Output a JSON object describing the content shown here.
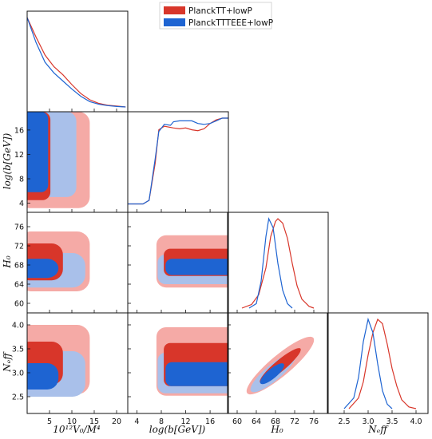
{
  "chart_data": {
    "type": "triangle_corner_plot",
    "parameters": [
      {
        "key": "V",
        "label": "10¹²V₀/M⁴",
        "range": [
          0,
          22.5
        ],
        "ticks": [
          5,
          10,
          15,
          20
        ]
      },
      {
        "key": "b",
        "label": "log(b[GeV])",
        "range": [
          2.5,
          19
        ],
        "ticks": [
          4,
          8,
          12,
          16
        ]
      },
      {
        "key": "H0",
        "label": "H₀",
        "range": [
          58,
          79
        ],
        "ticks": [
          60,
          64,
          68,
          72,
          76
        ],
        "yticks": [
          60,
          64,
          68,
          72,
          76
        ]
      },
      {
        "key": "Neff",
        "label": "Nₑff",
        "range": [
          2.15,
          4.25
        ],
        "ticks": [
          2.5,
          3.0,
          3.5,
          4.0
        ]
      }
    ],
    "axis_labels": {
      "x": [
        "10¹²V₀/M⁴",
        "log(b[GeV])",
        "H₀",
        "Nₑff"
      ],
      "y": [
        "log(b[GeV])",
        "H₀",
        "Nₑff"
      ]
    },
    "tick_labels": {
      "V": [
        "5",
        "10",
        "15",
        "20"
      ],
      "b": [
        "4",
        "8",
        "12",
        "16"
      ],
      "H0": [
        "60",
        "64",
        "68",
        "72",
        "76"
      ],
      "Neff": [
        "2.5",
        "3.0",
        "3.5",
        "4.0"
      ]
    },
    "series": [
      {
        "name": "PlanckTT+lowP",
        "color": "#d8362a",
        "light": "#f5aaa6",
        "marginals": {
          "V": [
            [
              0,
              1.0
            ],
            [
              2,
              0.78
            ],
            [
              4,
              0.58
            ],
            [
              6,
              0.45
            ],
            [
              8,
              0.36
            ],
            [
              10,
              0.25
            ],
            [
              12,
              0.15
            ],
            [
              14,
              0.08
            ],
            [
              16,
              0.04
            ],
            [
              18,
              0.02
            ],
            [
              20,
              0.01
            ],
            [
              22,
              0.0
            ]
          ],
          "b": [
            [
              2.5,
              0.04
            ],
            [
              5,
              0.04
            ],
            [
              6,
              0.08
            ],
            [
              7,
              0.5
            ],
            [
              7.6,
              0.87
            ],
            [
              8.5,
              0.91
            ],
            [
              10,
              0.89
            ],
            [
              11,
              0.88
            ],
            [
              12,
              0.89
            ],
            [
              13,
              0.87
            ],
            [
              14,
              0.86
            ],
            [
              15,
              0.88
            ],
            [
              16,
              0.94
            ],
            [
              17,
              0.98
            ],
            [
              18,
              1.0
            ],
            [
              19,
              1.0
            ]
          ],
          "H0": [
            [
              61,
              0.0
            ],
            [
              63,
              0.04
            ],
            [
              64.5,
              0.15
            ],
            [
              66,
              0.45
            ],
            [
              67,
              0.8
            ],
            [
              68,
              0.97
            ],
            [
              68.5,
              1.0
            ],
            [
              69.5,
              0.95
            ],
            [
              70.5,
              0.78
            ],
            [
              71.5,
              0.5
            ],
            [
              72.5,
              0.25
            ],
            [
              73.5,
              0.1
            ],
            [
              75,
              0.02
            ],
            [
              76,
              0.0
            ]
          ],
          "Neff": [
            [
              2.6,
              0.0
            ],
            [
              2.8,
              0.12
            ],
            [
              2.9,
              0.3
            ],
            [
              3.0,
              0.6
            ],
            [
              3.1,
              0.85
            ],
            [
              3.2,
              1.0
            ],
            [
              3.3,
              0.95
            ],
            [
              3.4,
              0.72
            ],
            [
              3.5,
              0.45
            ],
            [
              3.6,
              0.25
            ],
            [
              3.7,
              0.1
            ],
            [
              3.85,
              0.02
            ],
            [
              4.0,
              0.0
            ]
          ]
        }
      },
      {
        "name": "PlanckTTTEEE+lowP",
        "color": "#1e64d2",
        "light": "#a9c0ea",
        "marginals": {
          "V": [
            [
              0,
              1.0
            ],
            [
              2,
              0.72
            ],
            [
              4,
              0.5
            ],
            [
              6,
              0.38
            ],
            [
              8,
              0.29
            ],
            [
              10,
              0.2
            ],
            [
              12,
              0.12
            ],
            [
              14,
              0.06
            ],
            [
              16,
              0.03
            ],
            [
              18,
              0.015
            ],
            [
              20,
              0.005
            ],
            [
              22,
              0.0
            ]
          ],
          "b": [
            [
              2.5,
              0.04
            ],
            [
              5,
              0.04
            ],
            [
              6,
              0.08
            ],
            [
              7,
              0.55
            ],
            [
              7.6,
              0.85
            ],
            [
              8.5,
              0.93
            ],
            [
              9.5,
              0.92
            ],
            [
              10,
              0.96
            ],
            [
              11,
              0.97
            ],
            [
              13,
              0.97
            ],
            [
              14,
              0.94
            ],
            [
              15,
              0.93
            ],
            [
              16,
              0.94
            ],
            [
              17,
              0.97
            ],
            [
              18,
              1.0
            ],
            [
              19,
              1.0
            ]
          ],
          "H0": [
            [
              62.5,
              0.0
            ],
            [
              64,
              0.05
            ],
            [
              65,
              0.3
            ],
            [
              66,
              0.8
            ],
            [
              66.6,
              1.0
            ],
            [
              67.5,
              0.9
            ],
            [
              68.5,
              0.5
            ],
            [
              69.5,
              0.2
            ],
            [
              70.5,
              0.05
            ],
            [
              71.5,
              0.0
            ]
          ],
          "Neff": [
            [
              2.5,
              0.0
            ],
            [
              2.7,
              0.12
            ],
            [
              2.8,
              0.35
            ],
            [
              2.9,
              0.75
            ],
            [
              3.0,
              1.0
            ],
            [
              3.1,
              0.85
            ],
            [
              3.2,
              0.5
            ],
            [
              3.3,
              0.2
            ],
            [
              3.4,
              0.05
            ],
            [
              3.5,
              0.0
            ]
          ]
        }
      }
    ]
  },
  "legend": {
    "entries": [
      {
        "label": "PlanckTT+lowP",
        "color": "#d8362a"
      },
      {
        "label": "PlanckTTTEEE+lowP",
        "color": "#1e64d2"
      }
    ]
  }
}
